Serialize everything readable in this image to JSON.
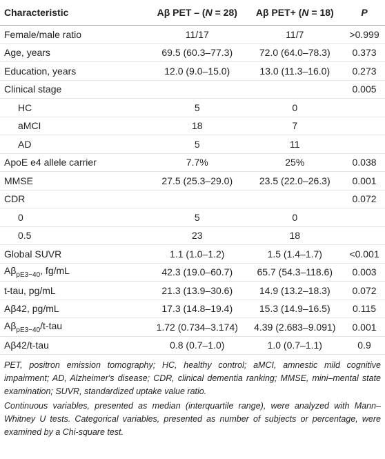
{
  "table": {
    "header": [
      {
        "pre": "Characteristic"
      },
      {
        "pre": "Aβ PET – (",
        "italic": "N",
        "post": " = 28)"
      },
      {
        "pre": "Aβ PET+ (",
        "italic": "N",
        "post": " = 18)"
      },
      {
        "italic": "P"
      }
    ],
    "rows": [
      {
        "label": {
          "main": "Female/male ratio"
        },
        "neg": "11/17",
        "pos": "11/7",
        "p": ">0.999"
      },
      {
        "label": {
          "main": "Age, years"
        },
        "neg": "69.5 (60.3–77.3)",
        "pos": "72.0 (64.0–78.3)",
        "p": "0.373"
      },
      {
        "label": {
          "main": "Education, years"
        },
        "neg": "12.0 (9.0–15.0)",
        "pos": "13.0 (11.3–16.0)",
        "p": "0.273"
      },
      {
        "label": {
          "main": "Clinical stage"
        },
        "p": "0.005"
      },
      {
        "label": {
          "main": "HC"
        },
        "level": 1,
        "neg": "5",
        "pos": "0"
      },
      {
        "label": {
          "main": "aMCI"
        },
        "level": 1,
        "neg": "18",
        "pos": "7"
      },
      {
        "label": {
          "main": "AD"
        },
        "level": 1,
        "neg": "5",
        "pos": "11"
      },
      {
        "label": {
          "main": "ApoE e4 allele carrier"
        },
        "neg": "7.7%",
        "pos": "25%",
        "p": "0.038"
      },
      {
        "label": {
          "main": "MMSE"
        },
        "neg": "27.5 (25.3–29.0)",
        "pos": "23.5 (22.0–26.3)",
        "p": "0.001"
      },
      {
        "label": {
          "main": "CDR"
        },
        "p": "0.072"
      },
      {
        "label": {
          "main": "0"
        },
        "level": 1,
        "neg": "5",
        "pos": "0"
      },
      {
        "label": {
          "main": "0.5"
        },
        "level": 1,
        "neg": "23",
        "pos": "18"
      },
      {
        "label": {
          "main": "Global SUVR"
        },
        "neg": "1.1 (1.0–1.2)",
        "pos": "1.5 (1.4–1.7)",
        "p": "<0.001"
      },
      {
        "label": {
          "main": "Aβ",
          "sub": "pE3−40",
          "rest": ", fg/mL"
        },
        "neg": "42.3 (19.0–60.7)",
        "pos": "65.7 (54.3–118.6)",
        "p": "0.003"
      },
      {
        "label": {
          "main": "t-tau, pg/mL"
        },
        "neg": "21.3 (13.9–30.6)",
        "pos": "14.9 (13.2–18.3)",
        "p": "0.072"
      },
      {
        "label": {
          "main": "Aβ42, pg/mL"
        },
        "neg": "17.3 (14.8–19.4)",
        "pos": "15.3 (14.9–16.5)",
        "p": "0.115"
      },
      {
        "label": {
          "main": "Aβ",
          "sub": "pE3−40",
          "rest": "/t-tau"
        },
        "neg": "1.72 (0.734–3.174)",
        "pos": "4.39 (2.683–9.091)",
        "p": "0.001"
      },
      {
        "label": {
          "main": "Aβ42/t-tau"
        },
        "neg": "0.8 (0.7–1.0)",
        "pos": "1.0 (0.7–1.1)",
        "p": "0.9"
      }
    ]
  },
  "footnotes": [
    "PET, positron emission tomography; HC, healthy control; aMCI, amnestic mild cognitive impairment; AD, Alzheimer's disease; CDR, clinical dementia ranking; MMSE, mini–mental state examination; SUVR, standardized uptake value ratio.",
    "Continuous variables, presented as median (interquartile range), were analyzed with Mann–Whitney U tests. Categorical variables, presented as number of subjects or percentage, were examined by a Chi-square test."
  ]
}
